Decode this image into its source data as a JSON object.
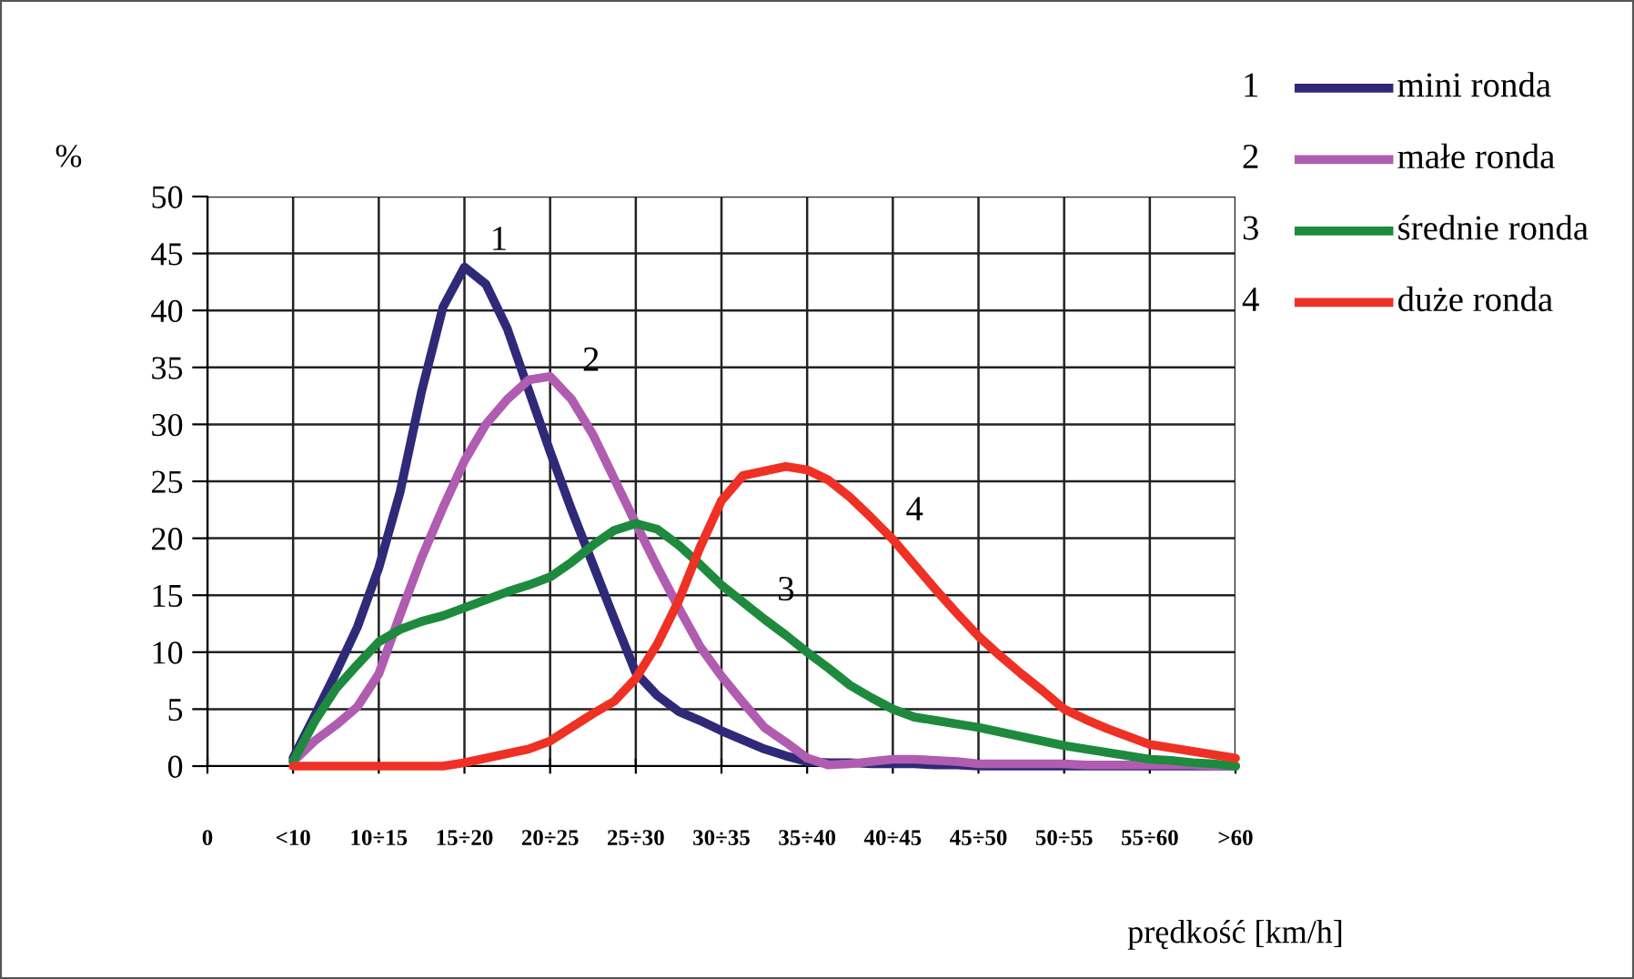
{
  "chart_data": {
    "type": "line",
    "ylabel": "%",
    "xlabel": "prędkość [km/h]",
    "categories": [
      "0",
      null,
      null,
      null,
      "<10",
      null,
      null,
      null,
      "10÷15",
      null,
      null,
      null,
      "15÷20",
      null,
      null,
      null,
      "20÷25",
      null,
      null,
      null,
      "25÷30",
      null,
      null,
      null,
      "30÷35",
      null,
      null,
      null,
      "35÷40",
      null,
      null,
      null,
      "40÷45",
      null,
      null,
      null,
      "45÷50",
      null,
      null,
      null,
      "50÷55",
      null,
      null,
      null,
      "55÷60",
      null,
      null,
      null,
      ">60"
    ],
    "ylim": [
      0,
      50
    ],
    "yticks": [
      0,
      5,
      10,
      15,
      20,
      25,
      30,
      35,
      40,
      45,
      50
    ],
    "grid": true,
    "legend": "top right",
    "marker": "none",
    "line_style": "solid",
    "series": [
      {
        "name": "mini ronda",
        "color": "#2e2a78",
        "values": [
          null,
          null,
          null,
          null,
          0.7,
          4.4,
          8.2,
          12.2,
          17.4,
          24.1,
          32.9,
          40.3,
          43.8,
          42.3,
          38.4,
          33,
          27.6,
          22.5,
          17.7,
          12.9,
          8.2,
          6.2,
          4.8,
          4.0,
          3.1,
          2.3,
          1.5,
          0.9,
          0.4,
          0.3,
          0.3,
          0.2,
          0.2,
          0.2,
          0.1,
          0.1,
          0,
          0,
          0,
          0,
          0,
          0,
          0,
          0,
          0,
          0,
          0,
          0,
          0
        ]
      },
      {
        "name": "małe ronda",
        "color": "#b05cb0",
        "values": [
          null,
          null,
          null,
          null,
          0.4,
          2.2,
          3.6,
          5.2,
          8.1,
          13.3,
          18.3,
          22.7,
          26.8,
          30.0,
          32.2,
          33.9,
          34.2,
          32.2,
          29.1,
          25.2,
          21.3,
          17.5,
          13.9,
          10.5,
          7.9,
          5.6,
          3.4,
          2.1,
          0.7,
          0.1,
          0.2,
          0.4,
          0.6,
          0.6,
          0.5,
          0.4,
          0.2,
          0.2,
          0.2,
          0.2,
          0.2,
          0.1,
          0.1,
          0.1,
          0.1,
          0.1,
          0.1,
          0,
          0
        ]
      },
      {
        "name": "średnie ronda",
        "color": "#1e8a3e",
        "values": [
          null,
          null,
          null,
          null,
          0.4,
          3.9,
          6.8,
          8.9,
          10.9,
          12.0,
          12.7,
          13.2,
          13.9,
          14.6,
          15.3,
          15.9,
          16.6,
          17.9,
          19.4,
          20.7,
          21.3,
          20.8,
          19.4,
          17.7,
          15.9,
          14.4,
          12.9,
          11.5,
          10,
          8.6,
          7.1,
          6.0,
          5,
          4.3,
          4.0,
          3.7,
          3.4,
          3.0,
          2.6,
          2.2,
          1.8,
          1.5,
          1.2,
          0.9,
          0.6,
          0.5,
          0.3,
          0.2,
          0
        ]
      },
      {
        "name": "duże ronda",
        "color": "#ee3124",
        "values": [
          null,
          null,
          null,
          null,
          0,
          0,
          0,
          0,
          0,
          0,
          0,
          0,
          0.3,
          0.7,
          1.1,
          1.5,
          2.2,
          3.4,
          4.6,
          5.7,
          7.7,
          10.7,
          14.5,
          19.2,
          23.3,
          25.5,
          25.9,
          26.3,
          26,
          25.1,
          23.6,
          21.8,
          19.9,
          17.7,
          15.5,
          13.4,
          11.4,
          9.7,
          8.1,
          6.6,
          5,
          4.1,
          3.3,
          2.6,
          1.9,
          1.6,
          1.3,
          1.0,
          0.7
        ]
      }
    ],
    "annotations": [
      "1",
      "2",
      "3",
      "4"
    ]
  }
}
